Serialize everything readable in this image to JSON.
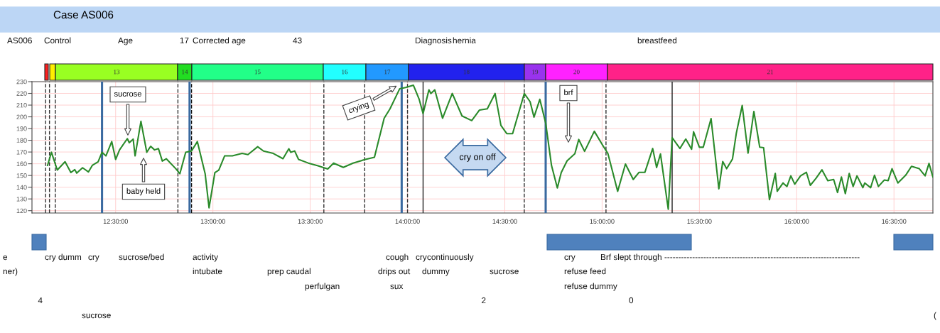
{
  "chart_data": {
    "type": "line",
    "title": "Case AS006",
    "x": [
      12.15,
      12.17,
      12.2,
      12.24,
      12.27,
      12.29,
      12.3,
      12.33,
      12.36,
      12.38,
      12.41,
      12.43,
      12.45,
      12.48,
      12.5,
      12.52,
      12.56,
      12.57,
      12.59,
      12.6,
      12.63,
      12.66,
      12.68,
      12.7,
      12.72,
      12.74,
      12.76,
      12.81,
      12.83,
      12.86,
      12.89,
      12.92,
      12.96,
      12.98,
      13.01,
      13.03,
      13.06,
      13.1,
      13.15,
      13.18,
      13.23,
      13.26,
      13.31,
      13.36,
      13.39,
      13.4,
      13.42,
      13.44,
      13.49,
      13.54,
      13.59,
      13.62,
      13.67,
      13.72,
      13.78,
      13.83,
      13.88,
      13.91,
      13.96,
      13.99,
      14.03,
      14.06,
      14.08,
      14.11,
      14.12,
      14.14,
      14.18,
      14.23,
      14.28,
      14.33,
      14.37,
      14.41,
      14.45,
      14.48,
      14.51,
      14.54,
      14.57,
      14.6,
      14.63,
      14.65,
      14.68,
      14.71,
      14.74,
      14.77,
      14.79,
      14.82,
      14.86,
      14.88,
      14.91,
      14.96,
      15.0,
      15.03,
      15.08,
      15.12,
      15.16,
      15.19,
      15.22,
      15.26,
      15.28,
      15.3,
      15.34,
      15.36,
      15.4,
      15.43,
      15.46,
      15.47,
      15.5,
      15.52,
      15.56,
      15.6,
      15.62,
      15.64,
      15.67,
      15.69,
      15.72,
      15.75,
      15.78,
      15.81,
      15.83,
      15.86,
      15.89,
      15.9,
      15.93,
      15.95,
      15.97,
      15.99,
      16.02,
      16.05,
      16.07,
      16.1,
      16.13,
      16.16,
      16.19,
      16.21,
      16.23,
      16.25,
      16.27,
      16.29,
      16.31,
      16.34,
      16.35,
      16.38,
      16.4,
      16.42,
      16.45,
      16.47,
      16.49,
      16.52,
      16.56,
      16.59,
      16.63,
      16.66,
      16.68,
      16.7
    ],
    "series": [
      {
        "color": "#2a8a2a",
        "values": [
          158.6,
          169.8,
          154.6,
          161.7,
          152.5,
          155,
          152,
          156.6,
          153,
          158.6,
          161.7,
          169.8,
          166.7,
          178.9,
          163.7,
          171.8,
          181.4,
          177.9,
          181,
          166.7,
          196.2,
          169.8,
          174.9,
          171.8,
          172.9,
          162.3,
          164.3,
          155.6,
          151.5,
          169.8,
          170.9,
          178.9,
          151.5,
          122.4,
          152.5,
          154.6,
          166.7,
          166.7,
          168.8,
          167.8,
          174.5,
          170.8,
          168.8,
          164.3,
          172.8,
          169.8,
          170.9,
          163.7,
          160.6,
          158.2,
          155.5,
          160.5,
          156.9,
          160.5,
          163.5,
          165.5,
          198.8,
          206.8,
          224,
          225,
          227,
          214.9,
          202.8,
          223,
          219.9,
          223,
          198.8,
          219.9,
          200.8,
          196.8,
          205.8,
          206.8,
          219.9,
          192.7,
          185.7,
          185.7,
          202.8,
          219.9,
          212.9,
          199.8,
          214.9,
          194.8,
          158.5,
          139.4,
          152.5,
          162.5,
          168.6,
          180.7,
          170.6,
          187.7,
          176.6,
          168.6,
          136.5,
          159.8,
          146.6,
          152.7,
          152.7,
          173,
          156.8,
          168.4,
          121.2,
          182.2,
          173,
          181.1,
          172.4,
          187.3,
          174.1,
          174.1,
          198.5,
          138.6,
          161.9,
          155.8,
          164,
          186.3,
          209.7,
          169.1,
          204.6,
          174.1,
          173.7,
          129.4,
          151.7,
          136.5,
          143.6,
          140.6,
          149.7,
          142.6,
          149.7,
          152.7,
          141.6,
          147.7,
          154.8,
          145.6,
          146.6,
          135.5,
          148.7,
          134.5,
          151.7,
          140.6,
          149.7,
          139.6,
          143.6,
          139.6,
          150.2,
          140.6,
          146.1,
          145.6,
          155.8,
          143.6,
          150.2,
          157.8,
          155.8,
          149.7,
          160.3,
          148.7
        ]
      }
    ],
    "xlim": [
      12.07,
      16.7
    ],
    "ylim": [
      118,
      230
    ],
    "xticks": [
      {
        "value": 12.5,
        "label": "12:30:00"
      },
      {
        "value": 13.0,
        "label": "13:00:00"
      },
      {
        "value": 13.5,
        "label": "13:30:00"
      },
      {
        "value": 14.0,
        "label": "14:00:00"
      },
      {
        "value": 14.5,
        "label": "14:30:00"
      },
      {
        "value": 15.0,
        "label": "15:00:00"
      },
      {
        "value": 15.5,
        "label": "15:30:00"
      },
      {
        "value": 16.0,
        "label": "16:00:00"
      },
      {
        "value": 16.5,
        "label": "16:30:00"
      }
    ],
    "yticks": [
      120,
      130,
      140,
      150,
      160,
      170,
      180,
      190,
      200,
      210,
      220,
      230
    ],
    "grid": true,
    "marker": "none",
    "line_style": "solid",
    "ref_lines": [
      {
        "axis": "x",
        "value": 12.14,
        "color": "#333333",
        "line_style": "dashed"
      },
      {
        "axis": "x",
        "value": 12.16,
        "color": "#333333",
        "line_style": "dashed"
      },
      {
        "axis": "x",
        "value": 12.19,
        "color": "#333333",
        "line_style": "dashed"
      },
      {
        "axis": "x",
        "value": 12.82,
        "color": "#333333",
        "line_style": "dashed"
      },
      {
        "axis": "x",
        "value": 12.89,
        "color": "#111111",
        "line_style": "dashed"
      },
      {
        "axis": "x",
        "value": 13.57,
        "color": "#333333",
        "line_style": "dashed"
      },
      {
        "axis": "x",
        "value": 13.78,
        "color": "#333333",
        "line_style": "dashed"
      },
      {
        "axis": "x",
        "value": 14.0,
        "color": "#333333",
        "line_style": "dashed"
      },
      {
        "axis": "x",
        "value": 14.6,
        "color": "#333333",
        "line_style": "dashed"
      },
      {
        "axis": "x",
        "value": 15.02,
        "color": "#333333",
        "line_style": "dashed"
      },
      {
        "axis": "x",
        "value": 14.08,
        "color": "#222222",
        "line_style": "solid"
      },
      {
        "axis": "x",
        "value": 15.36,
        "color": "#222222",
        "line_style": "solid"
      },
      {
        "axis": "x",
        "value": 12.43,
        "color": "#3a6aa0",
        "line_style": "solid"
      },
      {
        "axis": "x",
        "value": 12.88,
        "color": "#3a6aa0",
        "line_style": "solid"
      },
      {
        "axis": "x",
        "value": 13.97,
        "color": "#3a6aa0",
        "line_style": "solid"
      },
      {
        "axis": "x",
        "value": 14.71,
        "color": "#3a6aa0",
        "line_style": "solid"
      }
    ],
    "annotations": [
      "sucrose",
      "baby held",
      "crying",
      "cry on off",
      "brf",
      "AS006",
      "Control",
      "Age",
      "17",
      "Corrected age",
      "43",
      "Diagnosis",
      "hernia",
      "breastfeed",
      "e",
      "cry dumm",
      "cry",
      "sucrose/bed",
      "activity",
      "cough",
      "cry",
      "continuously",
      "cry",
      "Brf slept through ----------------------------------------------------------------------",
      "ner)",
      "intubate",
      "prep caudal",
      "drips out",
      "dummy",
      "sucrose",
      "refuse feed",
      "perfulgan",
      "sux",
      "refuse dummy",
      "4",
      "2",
      "0",
      "sucrose",
      "(",
      "13",
      "14",
      "15",
      "16",
      "17",
      "18",
      "19",
      "20",
      "21"
    ]
  }
}
